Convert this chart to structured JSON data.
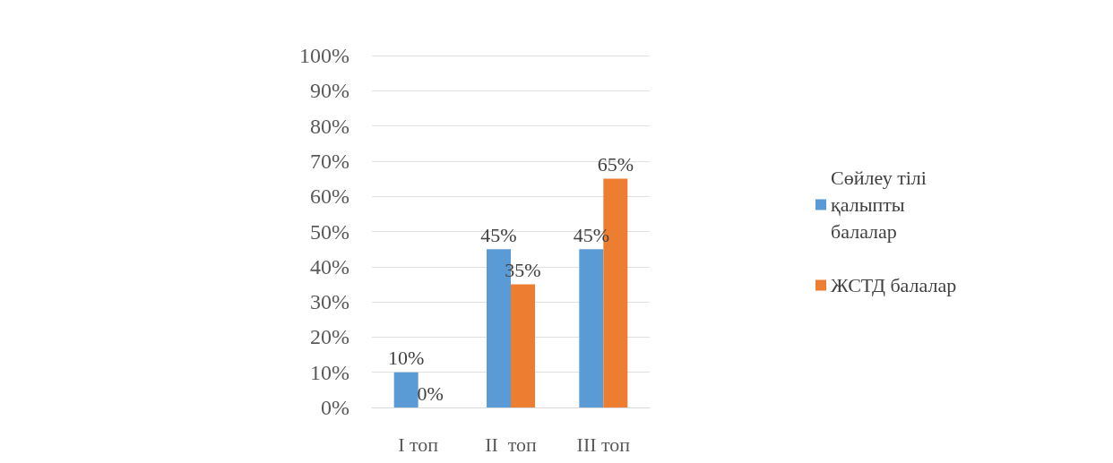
{
  "chart_data": {
    "type": "bar",
    "categories": [
      "I топ",
      "II  топ",
      "III топ"
    ],
    "series": [
      {
        "name": "Сөйлеу тілі қалыпты балалар",
        "color": "#5b9bd5",
        "values": [
          10,
          45,
          45
        ],
        "value_labels": [
          "10%",
          "45%",
          "45%"
        ]
      },
      {
        "name": "ЖСТД балалар",
        "color": "#ed7d31",
        "values": [
          0,
          35,
          65
        ],
        "value_labels": [
          "0%",
          "35%",
          "65%"
        ]
      }
    ],
    "ylim": [
      0,
      100
    ],
    "yticks": [
      {
        "value": 0,
        "label": "0%"
      },
      {
        "value": 10,
        "label": "10%"
      },
      {
        "value": 20,
        "label": "20%"
      },
      {
        "value": 30,
        "label": "30%"
      },
      {
        "value": 40,
        "label": "40%"
      },
      {
        "value": 50,
        "label": "50%"
      },
      {
        "value": 60,
        "label": "60%"
      },
      {
        "value": 70,
        "label": "70%"
      },
      {
        "value": 80,
        "label": "80%"
      },
      {
        "value": 90,
        "label": "90%"
      },
      {
        "value": 100,
        "label": "100%"
      }
    ],
    "grid": "y",
    "legend": "right"
  }
}
